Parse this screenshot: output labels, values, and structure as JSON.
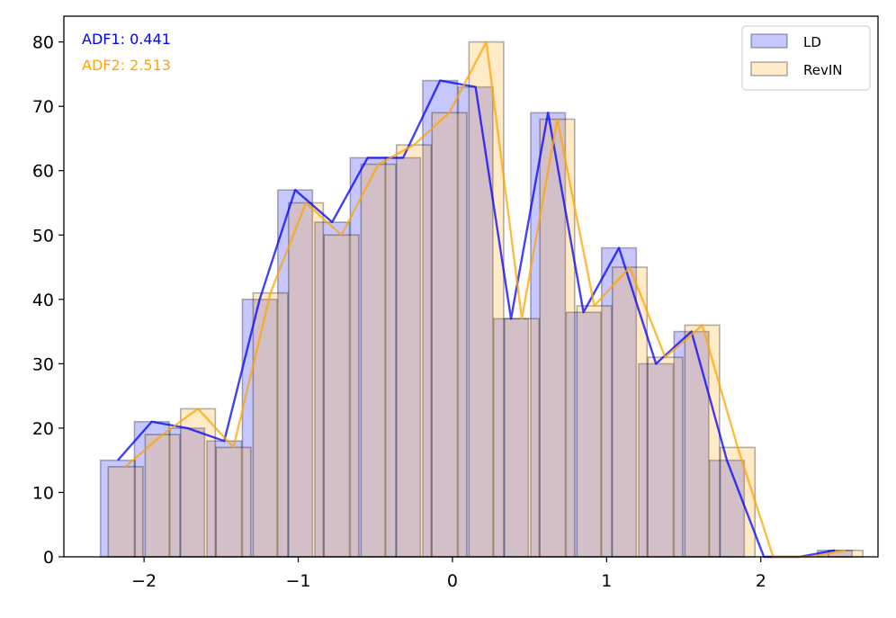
{
  "colors": {
    "ld": "#0000ff",
    "revin": "#ffa500",
    "edge": "#000000",
    "annotation_adf1": "#0000ff",
    "annotation_adf2": "#ffa500"
  },
  "chart_data": {
    "type": "bar",
    "title": "",
    "xlabel": "",
    "ylabel": "",
    "xlim": [
      -2.52,
      2.76
    ],
    "ylim": [
      0,
      84
    ],
    "xticks": [
      -2,
      -1,
      0,
      1,
      2
    ],
    "xtick_labels": [
      "−2",
      "−1",
      "0",
      "1",
      "2"
    ],
    "yticks": [
      0,
      10,
      20,
      30,
      40,
      50,
      60,
      70,
      80
    ],
    "ytick_labels": [
      "0",
      "10",
      "20",
      "30",
      "40",
      "50",
      "60",
      "70",
      "80"
    ],
    "grid": false,
    "legend_position": "top-right",
    "annotations": [
      {
        "text": "ADF1: 0.441",
        "color_key": "annotation_adf1"
      },
      {
        "text": "ADF2: 2.513",
        "color_key": "annotation_adf2"
      }
    ],
    "series": [
      {
        "name": "LD",
        "kind": "histogram",
        "color_key": "ld",
        "bin_centers": [
          -2.17,
          -1.95,
          -1.72,
          -1.48,
          -1.25,
          -1.02,
          -0.78,
          -0.55,
          -0.32,
          -0.08,
          0.15,
          0.38,
          0.62,
          0.85,
          1.08,
          1.32,
          1.55,
          1.78,
          2.02,
          2.25,
          2.48
        ],
        "bin_width": 0.225,
        "counts": [
          15,
          21,
          20,
          18,
          40,
          57,
          52,
          62,
          62,
          74,
          73,
          37,
          69,
          38,
          48,
          30,
          35,
          15,
          0,
          0,
          1
        ],
        "line_values": [
          15,
          21,
          20,
          18,
          40,
          57,
          52,
          62,
          62,
          74,
          73,
          37,
          69,
          38,
          48,
          30,
          35,
          15,
          0,
          0,
          1
        ]
      },
      {
        "name": "RevIN",
        "kind": "histogram",
        "color_key": "revin",
        "bin_centers": [
          -2.12,
          -1.88,
          -1.65,
          -1.42,
          -1.18,
          -0.95,
          -0.72,
          -0.48,
          -0.25,
          -0.02,
          0.22,
          0.45,
          0.68,
          0.92,
          1.15,
          1.38,
          1.62,
          1.85,
          2.08,
          2.32,
          2.55
        ],
        "bin_width": 0.225,
        "counts": [
          14,
          19,
          23,
          17,
          41,
          55,
          50,
          61,
          64,
          69,
          80,
          37,
          68,
          39,
          45,
          31,
          36,
          17,
          0,
          0,
          1
        ],
        "line_values": [
          14,
          19,
          23,
          17,
          41,
          55,
          50,
          61,
          64,
          69,
          80,
          37,
          68,
          39,
          45,
          31,
          36,
          17,
          0,
          0,
          1
        ]
      }
    ]
  }
}
